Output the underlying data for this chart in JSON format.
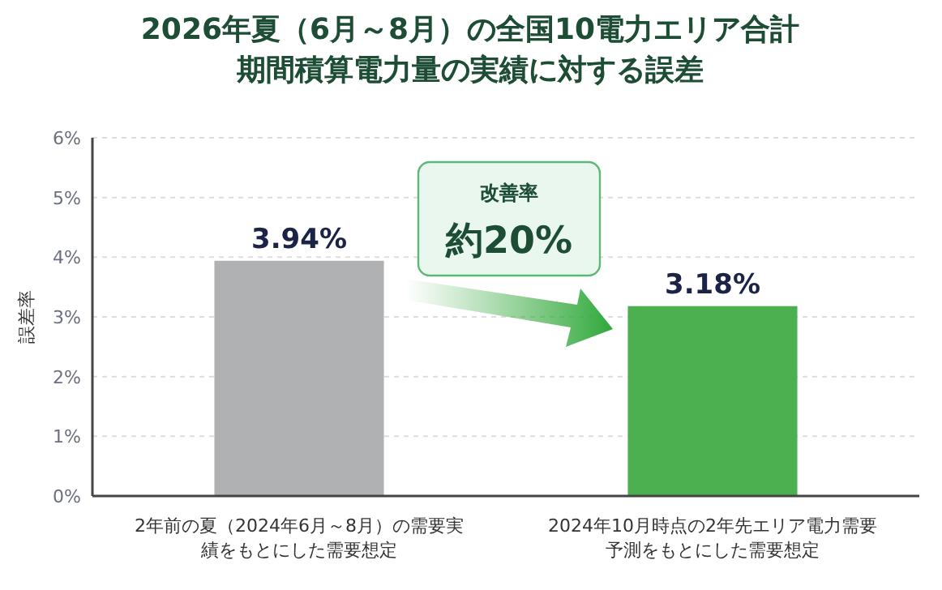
{
  "chart_data": {
    "type": "bar",
    "title": "2026年夏（6月～8月）の全国10電力エリア合計期間積算電力量の実績に対する誤差",
    "ylabel": "誤差率",
    "categories": [
      "2年前の夏（2024年6月～8月）の需要実績をもとにした需要想定",
      "2024年10月時点の2年先エリア電力需要予測をもとにした需要想定"
    ],
    "values": [
      3.94,
      3.18
    ],
    "colors": [
      "#b0b1b3",
      "#4cb050"
    ],
    "value_labels": [
      "3.94%",
      "3.18%"
    ],
    "ylim": [
      0,
      6
    ],
    "yticks": [
      {
        "value": 0,
        "label": "0%"
      },
      {
        "value": 1,
        "label": "1%"
      },
      {
        "value": 2,
        "label": "2%"
      },
      {
        "value": 3,
        "label": "3%"
      },
      {
        "value": 4,
        "label": "4%"
      },
      {
        "value": 5,
        "label": "5%"
      },
      {
        "value": 6,
        "label": "6%"
      }
    ],
    "grid": "y",
    "annotations": [
      "改善率",
      "約20%"
    ]
  }
}
